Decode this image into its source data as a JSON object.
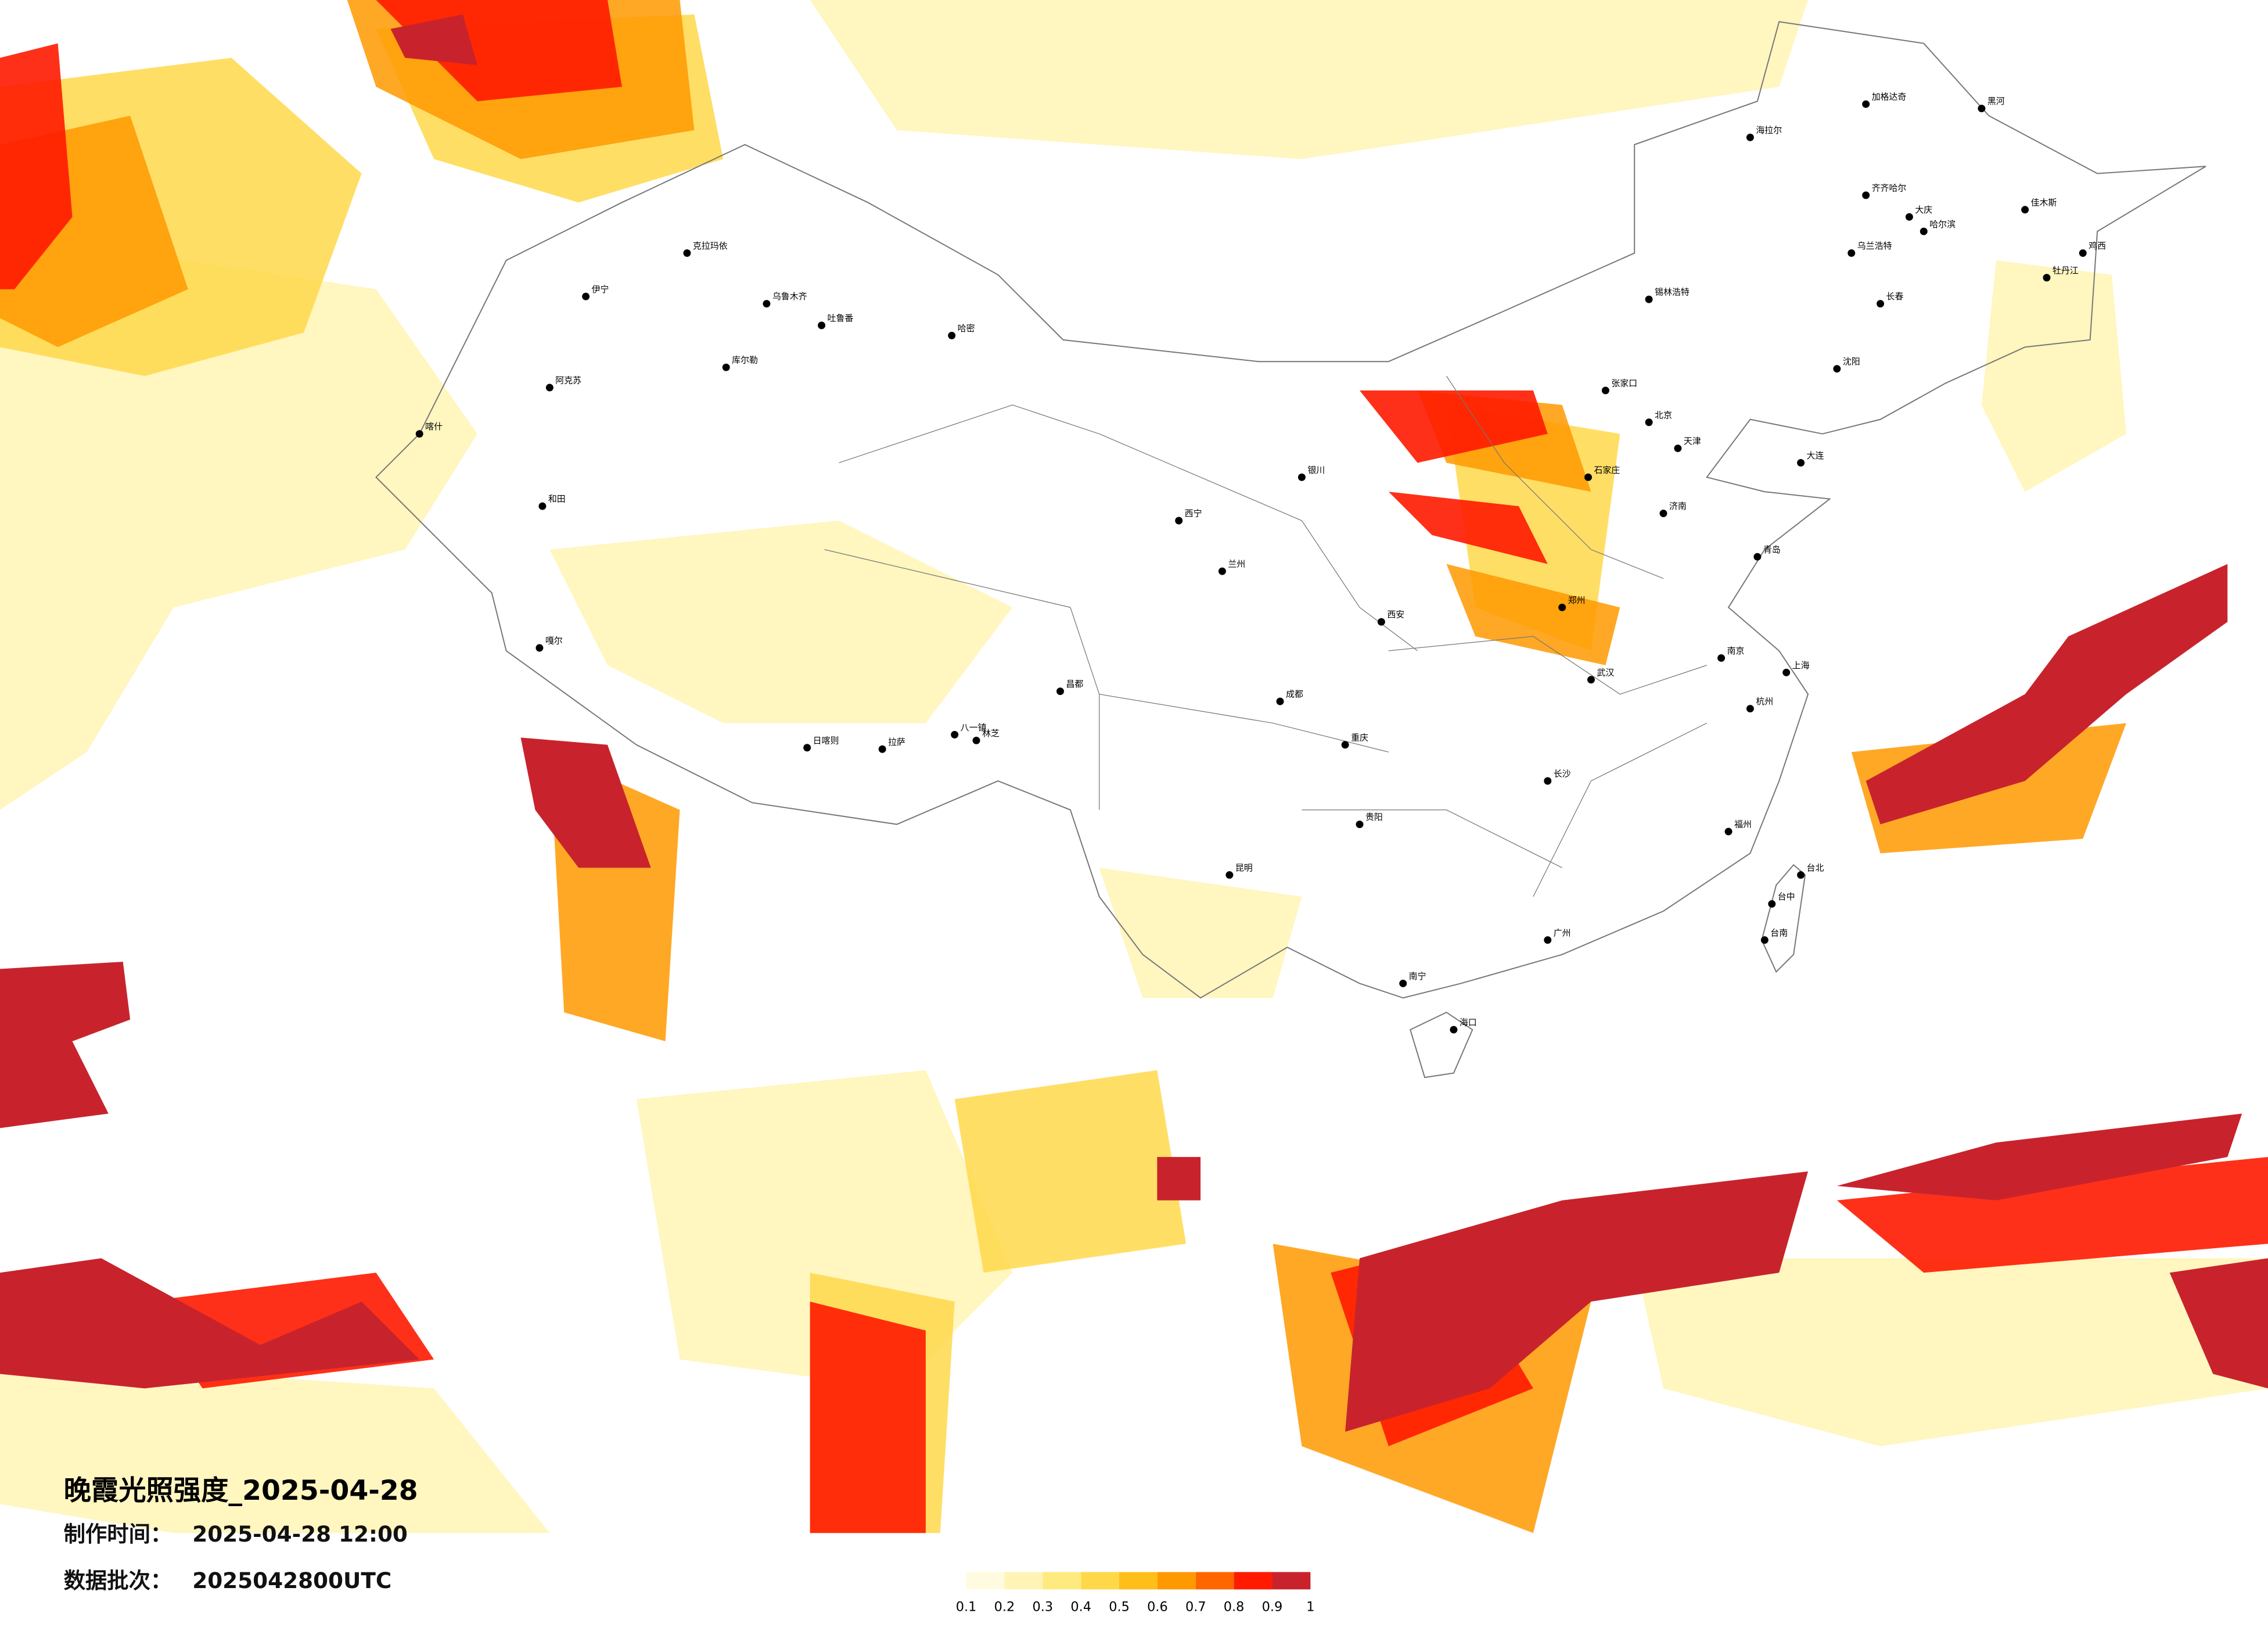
{
  "header": {
    "title": "晚霞光照强度_2025-04-28",
    "production_time_label": "制作时间：",
    "production_time": "2025-04-28 12:00",
    "batch_label": "数据批次：",
    "batch": "2025042800UTC"
  },
  "legend": {
    "ticks": [
      0.1,
      0.2,
      0.3,
      0.4,
      0.5,
      0.6,
      0.7,
      0.8,
      0.9,
      1
    ],
    "colors": [
      "#fffbe0",
      "#fff4b5",
      "#ffea80",
      "#ffd84a",
      "#ffbe1a",
      "#ff9900",
      "#ff6600",
      "#ff1a00",
      "#c8232c"
    ]
  },
  "cities": [
    "克拉玛依",
    "乌鲁木齐",
    "吐鲁番",
    "哈密",
    "库尔勒",
    "阿克苏",
    "和田",
    "伊宁",
    "喀什",
    "嘎尔",
    "日喀则",
    "拉萨",
    "八一镇",
    "林芝",
    "昌都",
    "西宁",
    "兰州",
    "银川",
    "北京",
    "天津",
    "石家庄",
    "张家口",
    "郑州",
    "西安",
    "成都",
    "重庆",
    "武汉",
    "长沙",
    "南京",
    "上海",
    "杭州",
    "福州",
    "广州",
    "南宁",
    "昆明",
    "贵阳",
    "海口",
    "台北",
    "台中",
    "台南",
    "哈尔滨",
    "长春",
    "沈阳",
    "齐齐哈尔",
    "大庆",
    "佳木斯",
    "鸡西",
    "牡丹江",
    "海拉尔",
    "加格达奇",
    "黑河",
    "锡林浩特",
    "济南",
    "青岛",
    "大连",
    "乌兰浩特"
  ]
}
